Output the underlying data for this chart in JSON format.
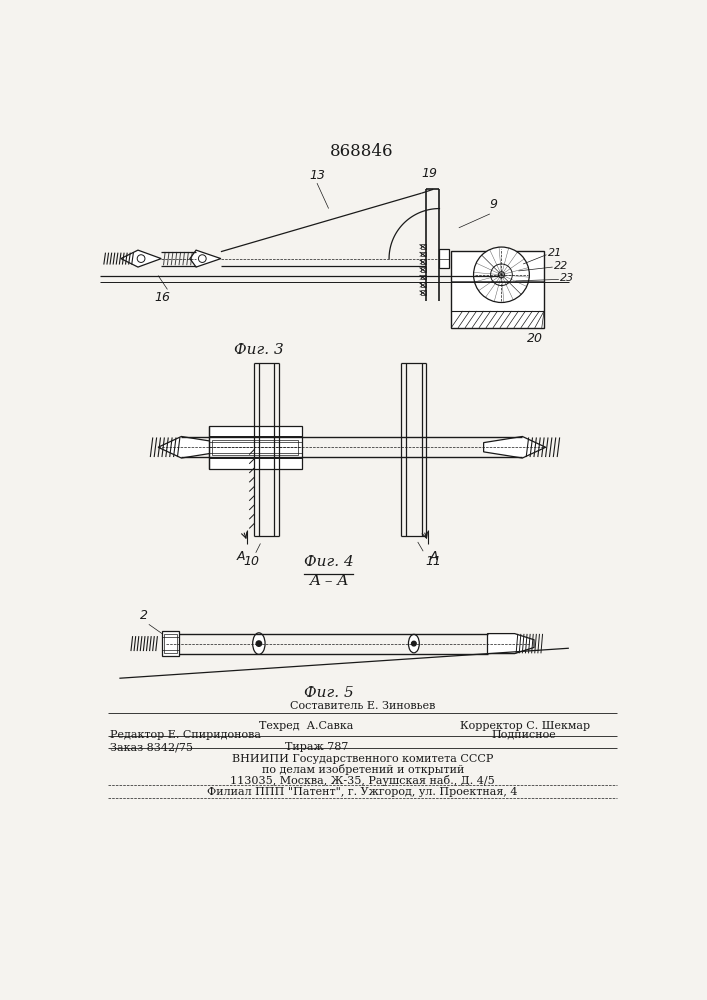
{
  "title": "868846",
  "bg_color": "#f5f3ef",
  "line_color": "#1a1a1a",
  "fig3_label": "Фиг. 3",
  "fig4_label": "Фиг. 4",
  "fig5_label": "Фиг. 5",
  "aa_label": "A–A",
  "footer": {
    "sostavitel": "Составитель Е. Зиновьев",
    "tehred": "Техред  А.Савка",
    "korrektor": "Корректор С. Шекмар",
    "redaktor": "Редактор Е. Спиридонова",
    "podpisnoe": "Подписное",
    "zakaz": "Заказ 8342/75",
    "tirazh": "Тираж 787",
    "vniip1": "ВНИИПИ Государственного комитета СССР",
    "vniip2": "по делам изобретений и открытий",
    "addr": "113035, Москва, Ж-35, Раушская наб., Д. 4/5",
    "filial": "Филиал ППП \"Патент\", г. Ужгород, ул. Проектная, 4"
  }
}
